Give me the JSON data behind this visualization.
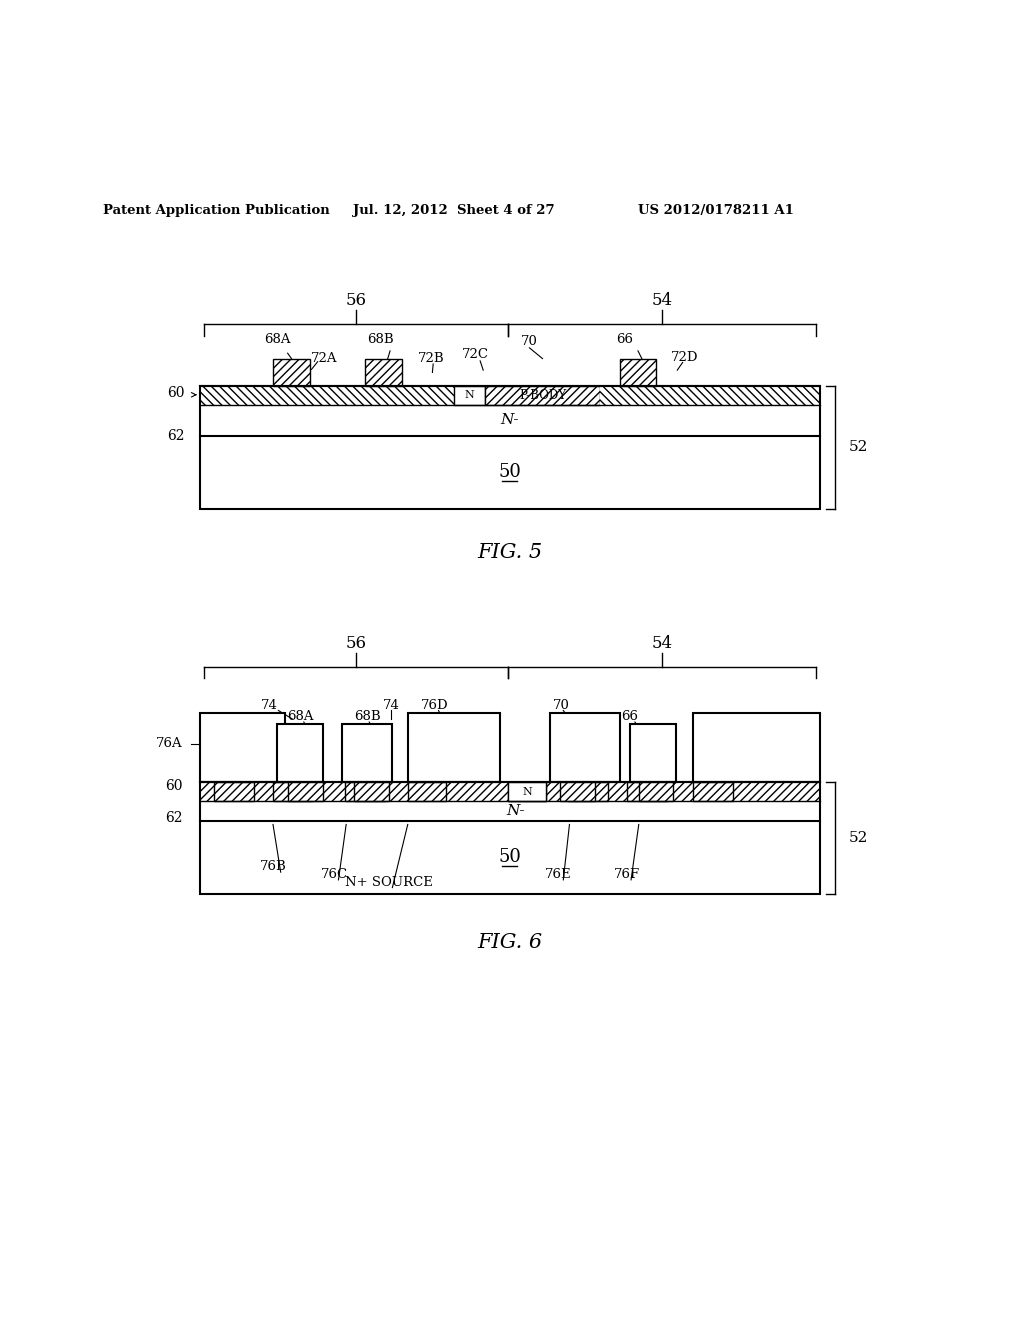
{
  "header_left": "Patent Application Publication",
  "header_mid": "Jul. 12, 2012  Sheet 4 of 27",
  "header_right": "US 2012/0178211 A1",
  "fig5_label": "FIG. 5",
  "fig6_label": "FIG. 6",
  "bg_color": "#ffffff",
  "line_color": "#000000"
}
